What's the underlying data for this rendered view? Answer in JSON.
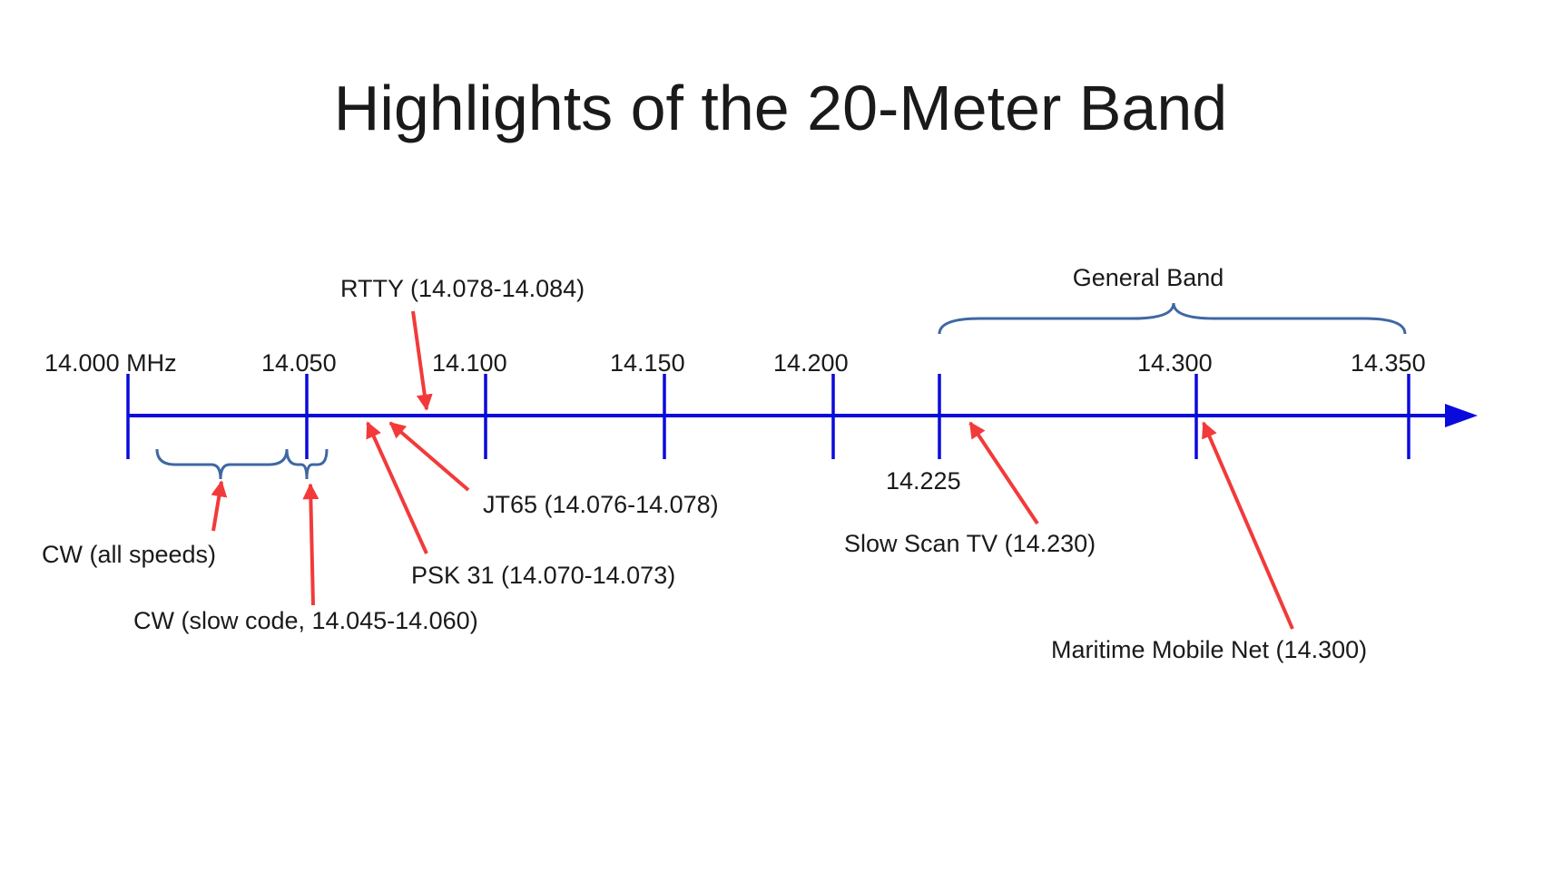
{
  "title": "Highlights of the 20-Meter Band",
  "colors": {
    "axis": "#0a0adc",
    "arrow": "#f23a3a",
    "brace": "#3f67a3",
    "text": "#1a1a1a"
  },
  "ticks": [
    {
      "label": "14.000 MHz"
    },
    {
      "label": "14.050"
    },
    {
      "label": "14.100"
    },
    {
      "label": "14.150"
    },
    {
      "label": "14.200"
    },
    {
      "label": "14.225"
    },
    {
      "label": "14.300"
    },
    {
      "label": "14.350"
    }
  ],
  "annotations": [
    {
      "label": "RTTY (14.078-14.084)"
    },
    {
      "label": "JT65 (14.076-14.078)"
    },
    {
      "label": "PSK 31 (14.070-14.073)"
    },
    {
      "label": "CW (all speeds)"
    },
    {
      "label": "CW (slow code, 14.045-14.060)"
    },
    {
      "label": "Slow Scan TV (14.230)"
    },
    {
      "label": "Maritime Mobile Net (14.300)"
    }
  ],
  "brace_label": "General Band"
}
